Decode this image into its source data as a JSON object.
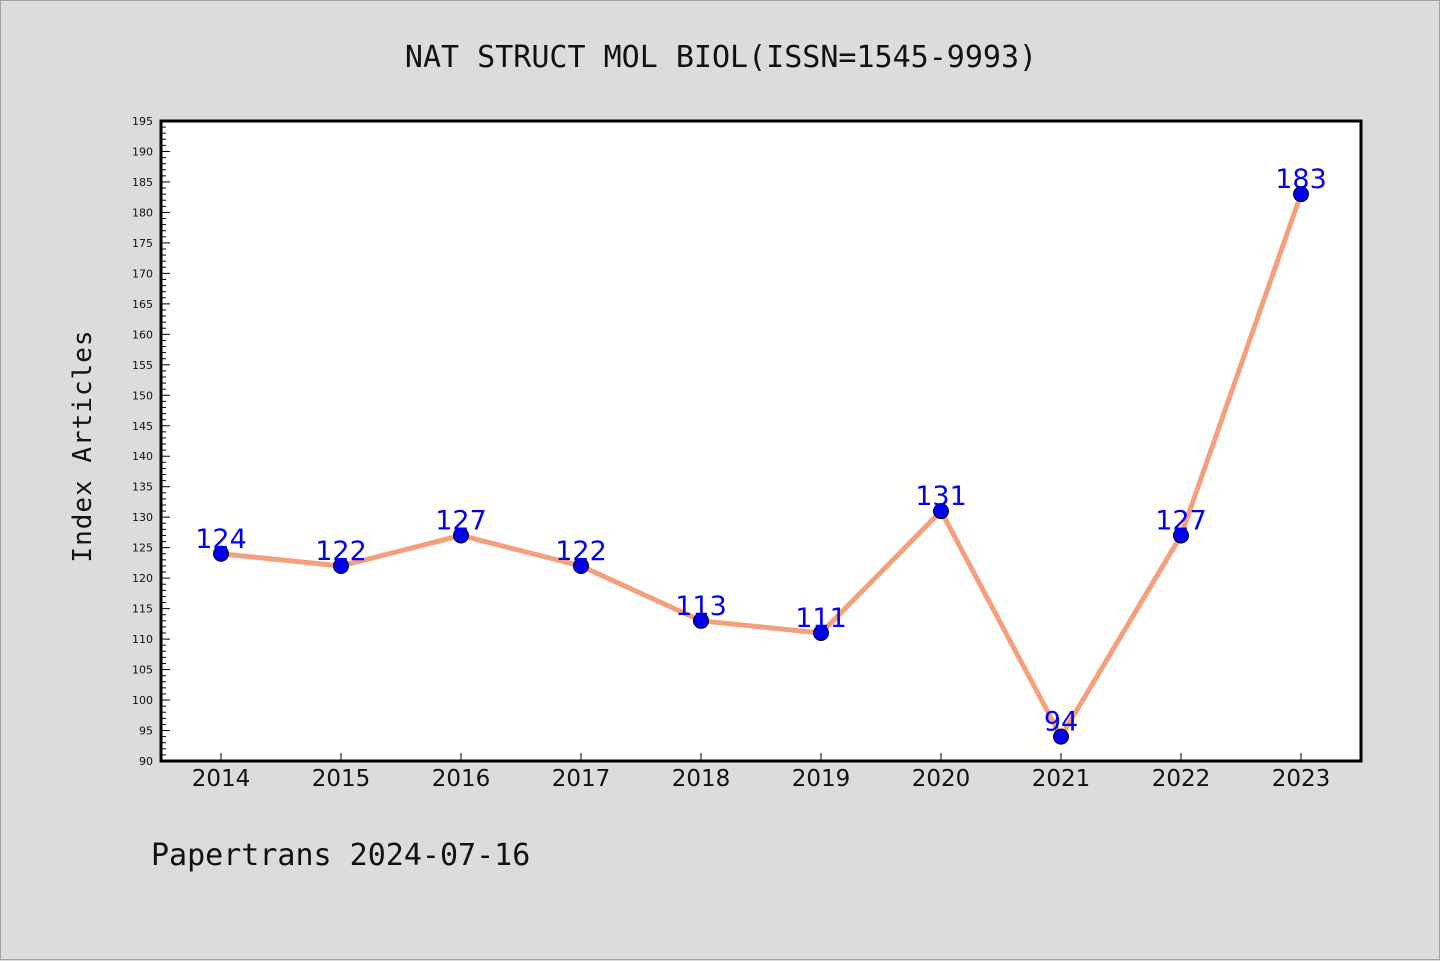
{
  "chart_data": {
    "type": "line",
    "title": "NAT STRUCT MOL BIOL(ISSN=1545-9993)",
    "xlabel": "",
    "ylabel": "Index Articles",
    "x": [
      "2014",
      "2015",
      "2016",
      "2017",
      "2018",
      "2019",
      "2020",
      "2021",
      "2022",
      "2023"
    ],
    "series": [
      {
        "values": [
          124,
          122,
          127,
          122,
          113,
          111,
          131,
          94,
          127,
          183
        ]
      }
    ],
    "data_labels": [
      "124",
      "122",
      "127",
      "122",
      "113",
      "111",
      "131",
      "94",
      "127",
      "183"
    ],
    "ylim": [
      90,
      195
    ],
    "y_major_ticks": [
      90,
      95,
      100,
      105,
      110,
      115,
      120,
      125,
      130,
      135,
      140,
      145,
      150,
      155,
      160,
      165,
      170,
      175,
      180,
      185,
      190,
      195
    ],
    "y_minor_step": 1,
    "grid": false,
    "legend": "none",
    "colors": {
      "line": "#f4a07c",
      "marker": "#0000ee",
      "data_label": "#0000ee",
      "plot_background": "#ffffff",
      "figure_background": "#dcdcdc"
    }
  },
  "footer": {
    "text": "Papertrans 2024-07-16"
  }
}
